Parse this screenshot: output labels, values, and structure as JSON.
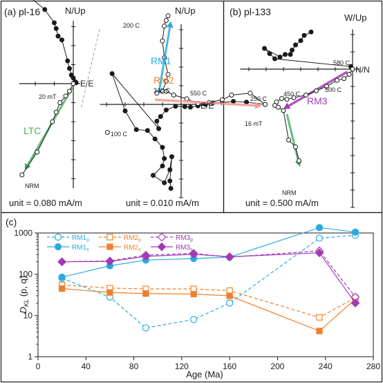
{
  "colors": {
    "ink": "#1a1a1a",
    "rm1": "#2aa9e0",
    "rm2": "#f07f2a",
    "rm3": "#a23ab5",
    "ltc": "#4caf61",
    "rm2_line": "#f09a90",
    "grey_dash": "#999999"
  },
  "panel_a": {
    "label": "(a) pl-16",
    "left": {
      "axis_top": "N/Up",
      "axis_right": "E/E",
      "unit": "unit = 0.080 mA/m",
      "label_20mT": "20 mT",
      "label_ltc": "LTC",
      "label_nrm": "NRM",
      "horizontal": [
        [
          -2.7,
          4.9
        ],
        [
          -1.5,
          3.9
        ],
        [
          -1.0,
          3.2
        ],
        [
          -0.9,
          2.9
        ],
        [
          -0.8,
          2.5
        ],
        [
          -0.6,
          2.3
        ],
        [
          -0.3,
          1.2
        ],
        [
          -0.2,
          0.8
        ],
        [
          -0.1,
          0.45
        ],
        [
          0,
          0.3
        ],
        [
          0.1,
          0.1
        ],
        [
          0.15,
          0.05
        ],
        [
          0,
          0
        ]
      ],
      "vertical": [
        [
          0,
          0
        ],
        [
          -0.2,
          -0.4
        ],
        [
          -0.4,
          -0.65
        ],
        [
          -0.7,
          -1.0
        ],
        [
          -0.9,
          -1.5
        ],
        [
          -1.1,
          -2.0
        ],
        [
          -1.9,
          -3.6
        ],
        [
          -2.7,
          -4.8
        ]
      ],
      "ltc_arrow": [
        [
          -0.05,
          -0.2
        ],
        [
          -2.55,
          -4.55
        ]
      ]
    },
    "right": {
      "axis_top": "N/Up",
      "axis_right": "E/E",
      "unit": "unit = 0.010 mA/m",
      "label_rm1": "RM1",
      "label_rm2": "RM2",
      "label_200": "200 C",
      "label_340": "340 C",
      "label_550": "550 C",
      "label_100": "100 C",
      "vertical": [
        [
          4.5,
          0
        ],
        [
          3.5,
          0.12
        ],
        [
          2.8,
          0.16
        ],
        [
          2.2,
          0.1
        ],
        [
          1.7,
          0.08
        ],
        [
          1.3,
          0
        ],
        [
          0.9,
          -0.08
        ],
        [
          0.5,
          -0.15
        ],
        [
          0.2,
          -0.12
        ],
        [
          -0.3,
          -0.1
        ],
        [
          -0.8,
          -0.3
        ],
        [
          -1.1,
          -0.65
        ],
        [
          -1.3,
          -0.9
        ],
        [
          -1.2,
          -1.3
        ],
        [
          -3.7,
          1.65
        ],
        [
          -3.0,
          -0.35
        ],
        [
          -2.4,
          -1.35
        ],
        [
          -1.8,
          -1.4
        ],
        [
          -1.4,
          -1.85
        ],
        [
          -1.0,
          -2.3
        ],
        [
          -0.9,
          -2.9
        ],
        [
          -1.0,
          -3.3
        ],
        [
          -1.5,
          -3.8
        ],
        [
          -0.9,
          -4.2
        ],
        [
          -0.6,
          -3.5
        ],
        [
          -0.5,
          -2.8
        ],
        [
          -0.6,
          -4.1
        ],
        [
          -0.55,
          -4.5
        ]
      ],
      "horizontal": [
        [
          4.5,
          0
        ],
        [
          3.7,
          0.6
        ],
        [
          2.7,
          0.5
        ],
        [
          2.2,
          0.25
        ],
        [
          1.5,
          0.1
        ],
        [
          0.9,
          0.05
        ],
        [
          0.3,
          0.3
        ],
        [
          -0.4,
          0.5
        ],
        [
          -0.8,
          0.7
        ],
        [
          -1.3,
          0.6
        ],
        [
          -1.0,
          0.7
        ],
        [
          -0.8,
          1.25
        ],
        [
          -0.7,
          1.6
        ],
        [
          -0.9,
          2.5
        ],
        [
          -1.0,
          3.4
        ],
        [
          -0.9,
          4.2
        ],
        [
          -0.8,
          4.5
        ],
        [
          -0.7,
          4.75
        ]
      ],
      "start_point": [
        -3.95,
        -1.5
      ],
      "rm1_arrow": [
        [
          -1.2,
          0.6
        ],
        [
          -0.55,
          4.45
        ]
      ],
      "rm2_arrow": [
        [
          -1.4,
          0.25
        ],
        [
          4.3,
          -0.08
        ]
      ]
    }
  },
  "panel_b": {
    "label": "(b) pl-133",
    "axis_top": "W/Up",
    "axis_right": "N/N",
    "unit": "unit = 0.500 mA/m",
    "label_580": "580 C",
    "label_500": "500 C",
    "label_450": "450 C",
    "label_250": "250 C",
    "label_16mT": "16 mT",
    "label_rm3": "RM3",
    "label_nrm": "NRM",
    "horizontal": [
      [
        -2.4,
        2.15
      ],
      [
        -2.8,
        1.95
      ],
      [
        -3.0,
        1.65
      ],
      [
        -3.3,
        1.4
      ],
      [
        -3.5,
        1.1
      ],
      [
        -3.6,
        0.85
      ],
      [
        -3.9,
        0.85
      ],
      [
        -4.2,
        0.7
      ],
      [
        -5.1,
        1.2
      ],
      [
        -4.8,
        0.9
      ],
      [
        -4.5,
        0.6
      ],
      [
        -0.1,
        0.15
      ],
      [
        0,
        0
      ]
    ],
    "vertical": [
      [
        0,
        0
      ],
      [
        -0.2,
        -0.3
      ],
      [
        -0.5,
        -0.55
      ],
      [
        -0.9,
        -0.65
      ],
      [
        -1.5,
        -1.0
      ],
      [
        -2.1,
        -1.25
      ],
      [
        -2.7,
        -1.5
      ],
      [
        -3.4,
        -1.65
      ],
      [
        -3.8,
        -1.75
      ],
      [
        -4.1,
        -1.7
      ],
      [
        -4.4,
        -1.9
      ],
      [
        -4.5,
        -2.1
      ],
      [
        -4.3,
        -2.2
      ],
      [
        -4.0,
        -2.4
      ],
      [
        -3.7,
        -4.1
      ],
      [
        -3.3,
        -4.5
      ],
      [
        -3.1,
        -5.3
      ]
    ],
    "rm3_arrow": [
      [
        -0.3,
        -0.15
      ],
      [
        -4.0,
        -2.3
      ]
    ],
    "ltc_arrow": [
      [
        -3.8,
        -2.6
      ],
      [
        -3.05,
        -5.65
      ]
    ]
  },
  "chart_data": {
    "type": "line",
    "panel_label": "(c)",
    "xlabel": "Age (Ma)",
    "ylabel": "DKL (p, q)",
    "ylabel_main": "D",
    "ylabel_sub": "KL",
    "ylabel_rest": " (p, q)",
    "xlim": [
      0,
      280
    ],
    "ylim": [
      1,
      1000
    ],
    "yscale": "log",
    "xticks": [
      0,
      40,
      80,
      120,
      160,
      200,
      240,
      280
    ],
    "xtick_labels": [
      "0",
      "40",
      "80",
      "120",
      "160",
      "200",
      "240",
      "280"
    ],
    "yticks": [
      1,
      10,
      100,
      1000
    ],
    "ytick_labels": [
      "1",
      "10",
      "100",
      "1000"
    ],
    "grid": false,
    "legend_position": "top-left",
    "x": [
      20,
      60,
      90,
      130,
      160,
      235,
      265
    ],
    "series": [
      {
        "name": "RM1",
        "subscript": "p",
        "legend": "RM1p",
        "color": "#2aa9e0",
        "dashed": true,
        "marker": "circle",
        "filled": false,
        "values": [
          80,
          28,
          5,
          8,
          20,
          750,
          880
        ]
      },
      {
        "name": "RM1",
        "subscript": "s",
        "legend": "RM1s",
        "color": "#2aa9e0",
        "dashed": false,
        "marker": "circle",
        "filled": true,
        "values": [
          85,
          160,
          220,
          240,
          260,
          1350,
          1050
        ]
      },
      {
        "name": "RM2",
        "subscript": "p",
        "legend": "RM2p",
        "color": "#f07f2a",
        "dashed": true,
        "marker": "square",
        "filled": false,
        "values": [
          55,
          46,
          44,
          44,
          40,
          9,
          27
        ]
      },
      {
        "name": "RM2",
        "subscript": "s",
        "legend": "RM2s",
        "color": "#f07f2a",
        "dashed": false,
        "marker": "square",
        "filled": true,
        "values": [
          45,
          36,
          34,
          33,
          30,
          4.2,
          25
        ]
      },
      {
        "name": "RM3",
        "subscript": "p",
        "legend": "RM3p",
        "color": "#a23ab5",
        "dashed": true,
        "marker": "diamond",
        "filled": false,
        "values": [
          200,
          210,
          290,
          320,
          260,
          370,
          28
        ]
      },
      {
        "name": "RM3",
        "subscript": "s",
        "legend": "RM3s",
        "color": "#a23ab5",
        "dashed": false,
        "marker": "diamond",
        "filled": true,
        "values": [
          200,
          205,
          270,
          305,
          265,
          330,
          20
        ]
      }
    ]
  }
}
